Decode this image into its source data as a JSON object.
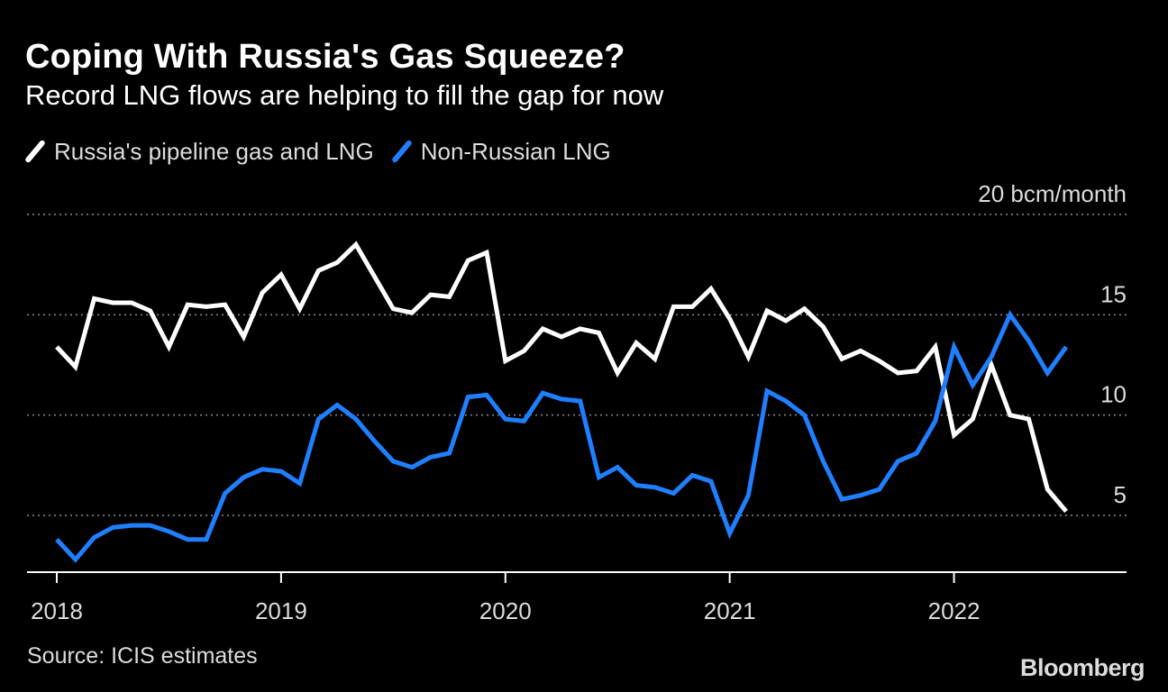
{
  "chart_data": {
    "type": "line",
    "title": "Coping With Russia's Gas Squeeze?",
    "subtitle": "Record LNG flows are helping to fill the gap for now",
    "unit_label": "20 bcm/month",
    "ylim": [
      2.5,
      20
    ],
    "yticks": [
      {
        "value": 20,
        "label": "20 bcm/month"
      },
      {
        "value": 15,
        "label": "15"
      },
      {
        "value": 10,
        "label": "10"
      },
      {
        "value": 5,
        "label": "5"
      }
    ],
    "xticks": [
      {
        "index": 0,
        "label": "2018"
      },
      {
        "index": 12,
        "label": "2019"
      },
      {
        "index": 24,
        "label": "2020"
      },
      {
        "index": 36,
        "label": "2021"
      },
      {
        "index": 48,
        "label": "2022"
      }
    ],
    "x": [
      "2018-01",
      "2018-02",
      "2018-03",
      "2018-04",
      "2018-05",
      "2018-06",
      "2018-07",
      "2018-08",
      "2018-09",
      "2018-10",
      "2018-11",
      "2018-12",
      "2019-01",
      "2019-02",
      "2019-03",
      "2019-04",
      "2019-05",
      "2019-06",
      "2019-07",
      "2019-08",
      "2019-09",
      "2019-10",
      "2019-11",
      "2019-12",
      "2020-01",
      "2020-02",
      "2020-03",
      "2020-04",
      "2020-05",
      "2020-06",
      "2020-07",
      "2020-08",
      "2020-09",
      "2020-10",
      "2020-11",
      "2020-12",
      "2021-01",
      "2021-02",
      "2021-03",
      "2021-04",
      "2021-05",
      "2021-06",
      "2021-07",
      "2021-08",
      "2021-09",
      "2021-10",
      "2021-11",
      "2021-12",
      "2022-01",
      "2022-02",
      "2022-03",
      "2022-04",
      "2022-05",
      "2022-06",
      "2022-07"
    ],
    "series": [
      {
        "name": "Russia's pipeline gas and LNG",
        "color": "#ffffff",
        "values": [
          13.4,
          12.4,
          15.8,
          15.6,
          15.6,
          15.2,
          13.4,
          15.5,
          15.4,
          15.5,
          13.9,
          16.1,
          17.0,
          15.3,
          17.2,
          17.6,
          18.5,
          16.9,
          15.3,
          15.1,
          16.0,
          15.9,
          17.7,
          18.1,
          12.7,
          13.2,
          14.3,
          13.9,
          14.3,
          14.1,
          12.1,
          13.6,
          12.8,
          15.4,
          15.4,
          16.3,
          14.8,
          12.9,
          15.2,
          14.7,
          15.3,
          14.4,
          12.8,
          13.2,
          12.7,
          12.1,
          12.2,
          13.4,
          9.0,
          9.8,
          12.5,
          10.0,
          9.8,
          6.3,
          5.2
        ]
      },
      {
        "name": "Non-Russian LNG",
        "color": "#1f7fff",
        "values": [
          3.8,
          2.8,
          3.9,
          4.4,
          4.5,
          4.5,
          4.2,
          3.8,
          3.8,
          6.1,
          6.9,
          7.3,
          7.2,
          6.6,
          9.8,
          10.5,
          9.8,
          8.7,
          7.7,
          7.4,
          7.9,
          8.1,
          10.9,
          11.0,
          9.8,
          9.7,
          11.1,
          10.8,
          10.7,
          6.9,
          7.4,
          6.5,
          6.4,
          6.1,
          7.0,
          6.7,
          4.1,
          6.0,
          11.2,
          10.7,
          10.0,
          7.7,
          5.8,
          6.0,
          6.3,
          7.7,
          8.1,
          9.7,
          13.4,
          11.5,
          12.9,
          15.0,
          13.7,
          12.1,
          13.4
        ]
      }
    ]
  },
  "source": "Source: ICIS estimates",
  "brand": "Bloomberg",
  "colors": {
    "background": "#000000",
    "grid": "#8c8c8c",
    "axis": "#ffffff"
  }
}
